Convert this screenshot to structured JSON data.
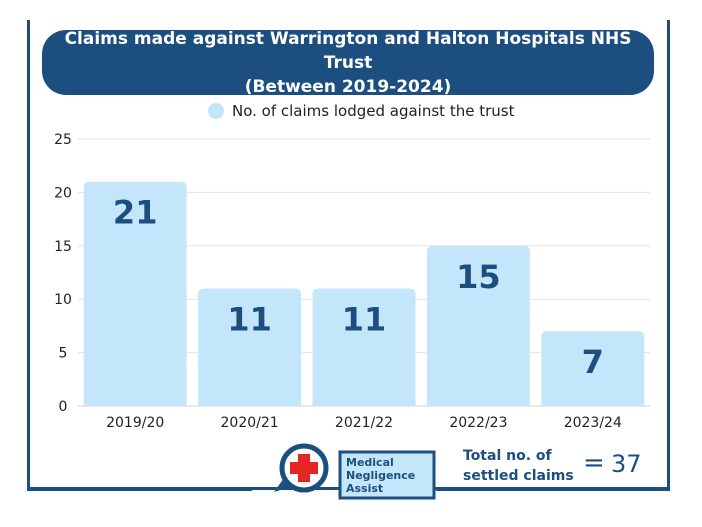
{
  "chart_data": {
    "type": "bar",
    "title_line1": "Claims made against Warrington and Halton Hospitals NHS Trust",
    "title_line2": "(Between 2019-2024)",
    "legend": "No. of claims lodged against the trust",
    "categories": [
      "2019/20",
      "2020/21",
      "2021/22",
      "2022/23",
      "2023/24"
    ],
    "series": [
      {
        "name": "No. of claims lodged against the trust",
        "values": [
          21,
          11,
          11,
          15,
          7
        ]
      }
    ],
    "yticks": [
      0,
      5,
      10,
      15,
      20,
      25
    ],
    "ylim": [
      0,
      25
    ],
    "grid": true,
    "legend_position": "top-center",
    "bar_color": "#c4e6fb",
    "label_color": "#1c4e80"
  },
  "logo": {
    "line1": "Medical",
    "line2": "Negligence",
    "line3": "Assist"
  },
  "total": {
    "label_line1": "Total no. of",
    "label_line2": "settled claims",
    "equals": "=",
    "value": "37"
  },
  "colors": {
    "primary": "#1c4e80",
    "bar": "#c4e6fb",
    "cross": "#e52521"
  }
}
